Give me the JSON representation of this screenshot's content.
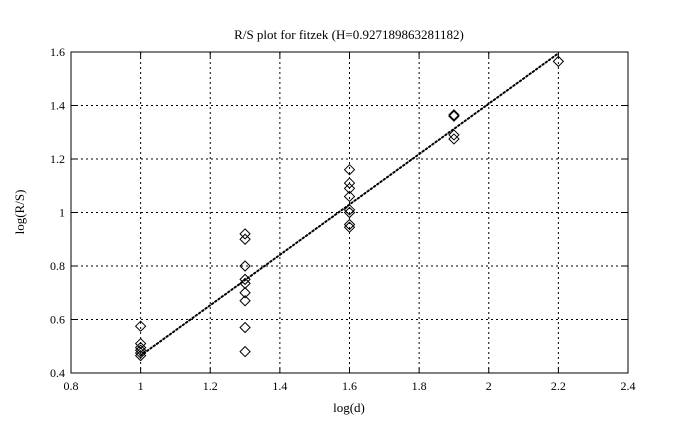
{
  "chart_data": {
    "type": "scatter",
    "title": "R/S plot for fitzek (H=0.927189863281182)",
    "xlabel": "log(d)",
    "ylabel": "log(R/S)",
    "xlim": [
      0.8,
      2.4
    ],
    "ylim": [
      0.4,
      1.6
    ],
    "x_ticks": [
      0.8,
      1,
      1.2,
      1.4,
      1.6,
      1.8,
      2,
      2.2,
      2.4
    ],
    "x_tick_labels": [
      "0.8",
      "1",
      "1.2",
      "1.4",
      "1.6",
      "1.8",
      "2",
      "2.2",
      "2.4"
    ],
    "y_ticks": [
      0.4,
      0.6,
      0.8,
      1.0,
      1.2,
      1.4,
      1.6
    ],
    "y_tick_labels": [
      "0.4",
      "0.6",
      "0.8",
      "1",
      "1.2",
      "1.4",
      "1.6"
    ],
    "grid": true,
    "legend": "none",
    "marker": "diamond",
    "points": [
      {
        "x": 1.0,
        "y": 0.575
      },
      {
        "x": 1.0,
        "y": 0.51
      },
      {
        "x": 1.0,
        "y": 0.495
      },
      {
        "x": 1.0,
        "y": 0.485
      },
      {
        "x": 1.0,
        "y": 0.475
      },
      {
        "x": 1.0,
        "y": 0.465
      },
      {
        "x": 1.3,
        "y": 0.92
      },
      {
        "x": 1.3,
        "y": 0.9
      },
      {
        "x": 1.3,
        "y": 0.8
      },
      {
        "x": 1.3,
        "y": 0.75
      },
      {
        "x": 1.3,
        "y": 0.735
      },
      {
        "x": 1.3,
        "y": 0.7
      },
      {
        "x": 1.3,
        "y": 0.67
      },
      {
        "x": 1.3,
        "y": 0.57
      },
      {
        "x": 1.3,
        "y": 0.48
      },
      {
        "x": 1.6,
        "y": 1.16
      },
      {
        "x": 1.6,
        "y": 1.11
      },
      {
        "x": 1.6,
        "y": 1.09
      },
      {
        "x": 1.6,
        "y": 1.06
      },
      {
        "x": 1.6,
        "y": 1.01
      },
      {
        "x": 1.6,
        "y": 1.0
      },
      {
        "x": 1.6,
        "y": 0.955
      },
      {
        "x": 1.6,
        "y": 0.945
      },
      {
        "x": 1.9,
        "y": 1.365
      },
      {
        "x": 1.9,
        "y": 1.36
      },
      {
        "x": 1.9,
        "y": 1.29
      },
      {
        "x": 1.9,
        "y": 1.275
      },
      {
        "x": 2.2,
        "y": 1.565
      }
    ],
    "fit_line": {
      "x": [
        1.0,
        2.2
      ],
      "y": [
        0.465,
        1.595
      ],
      "style": "dotted"
    }
  }
}
